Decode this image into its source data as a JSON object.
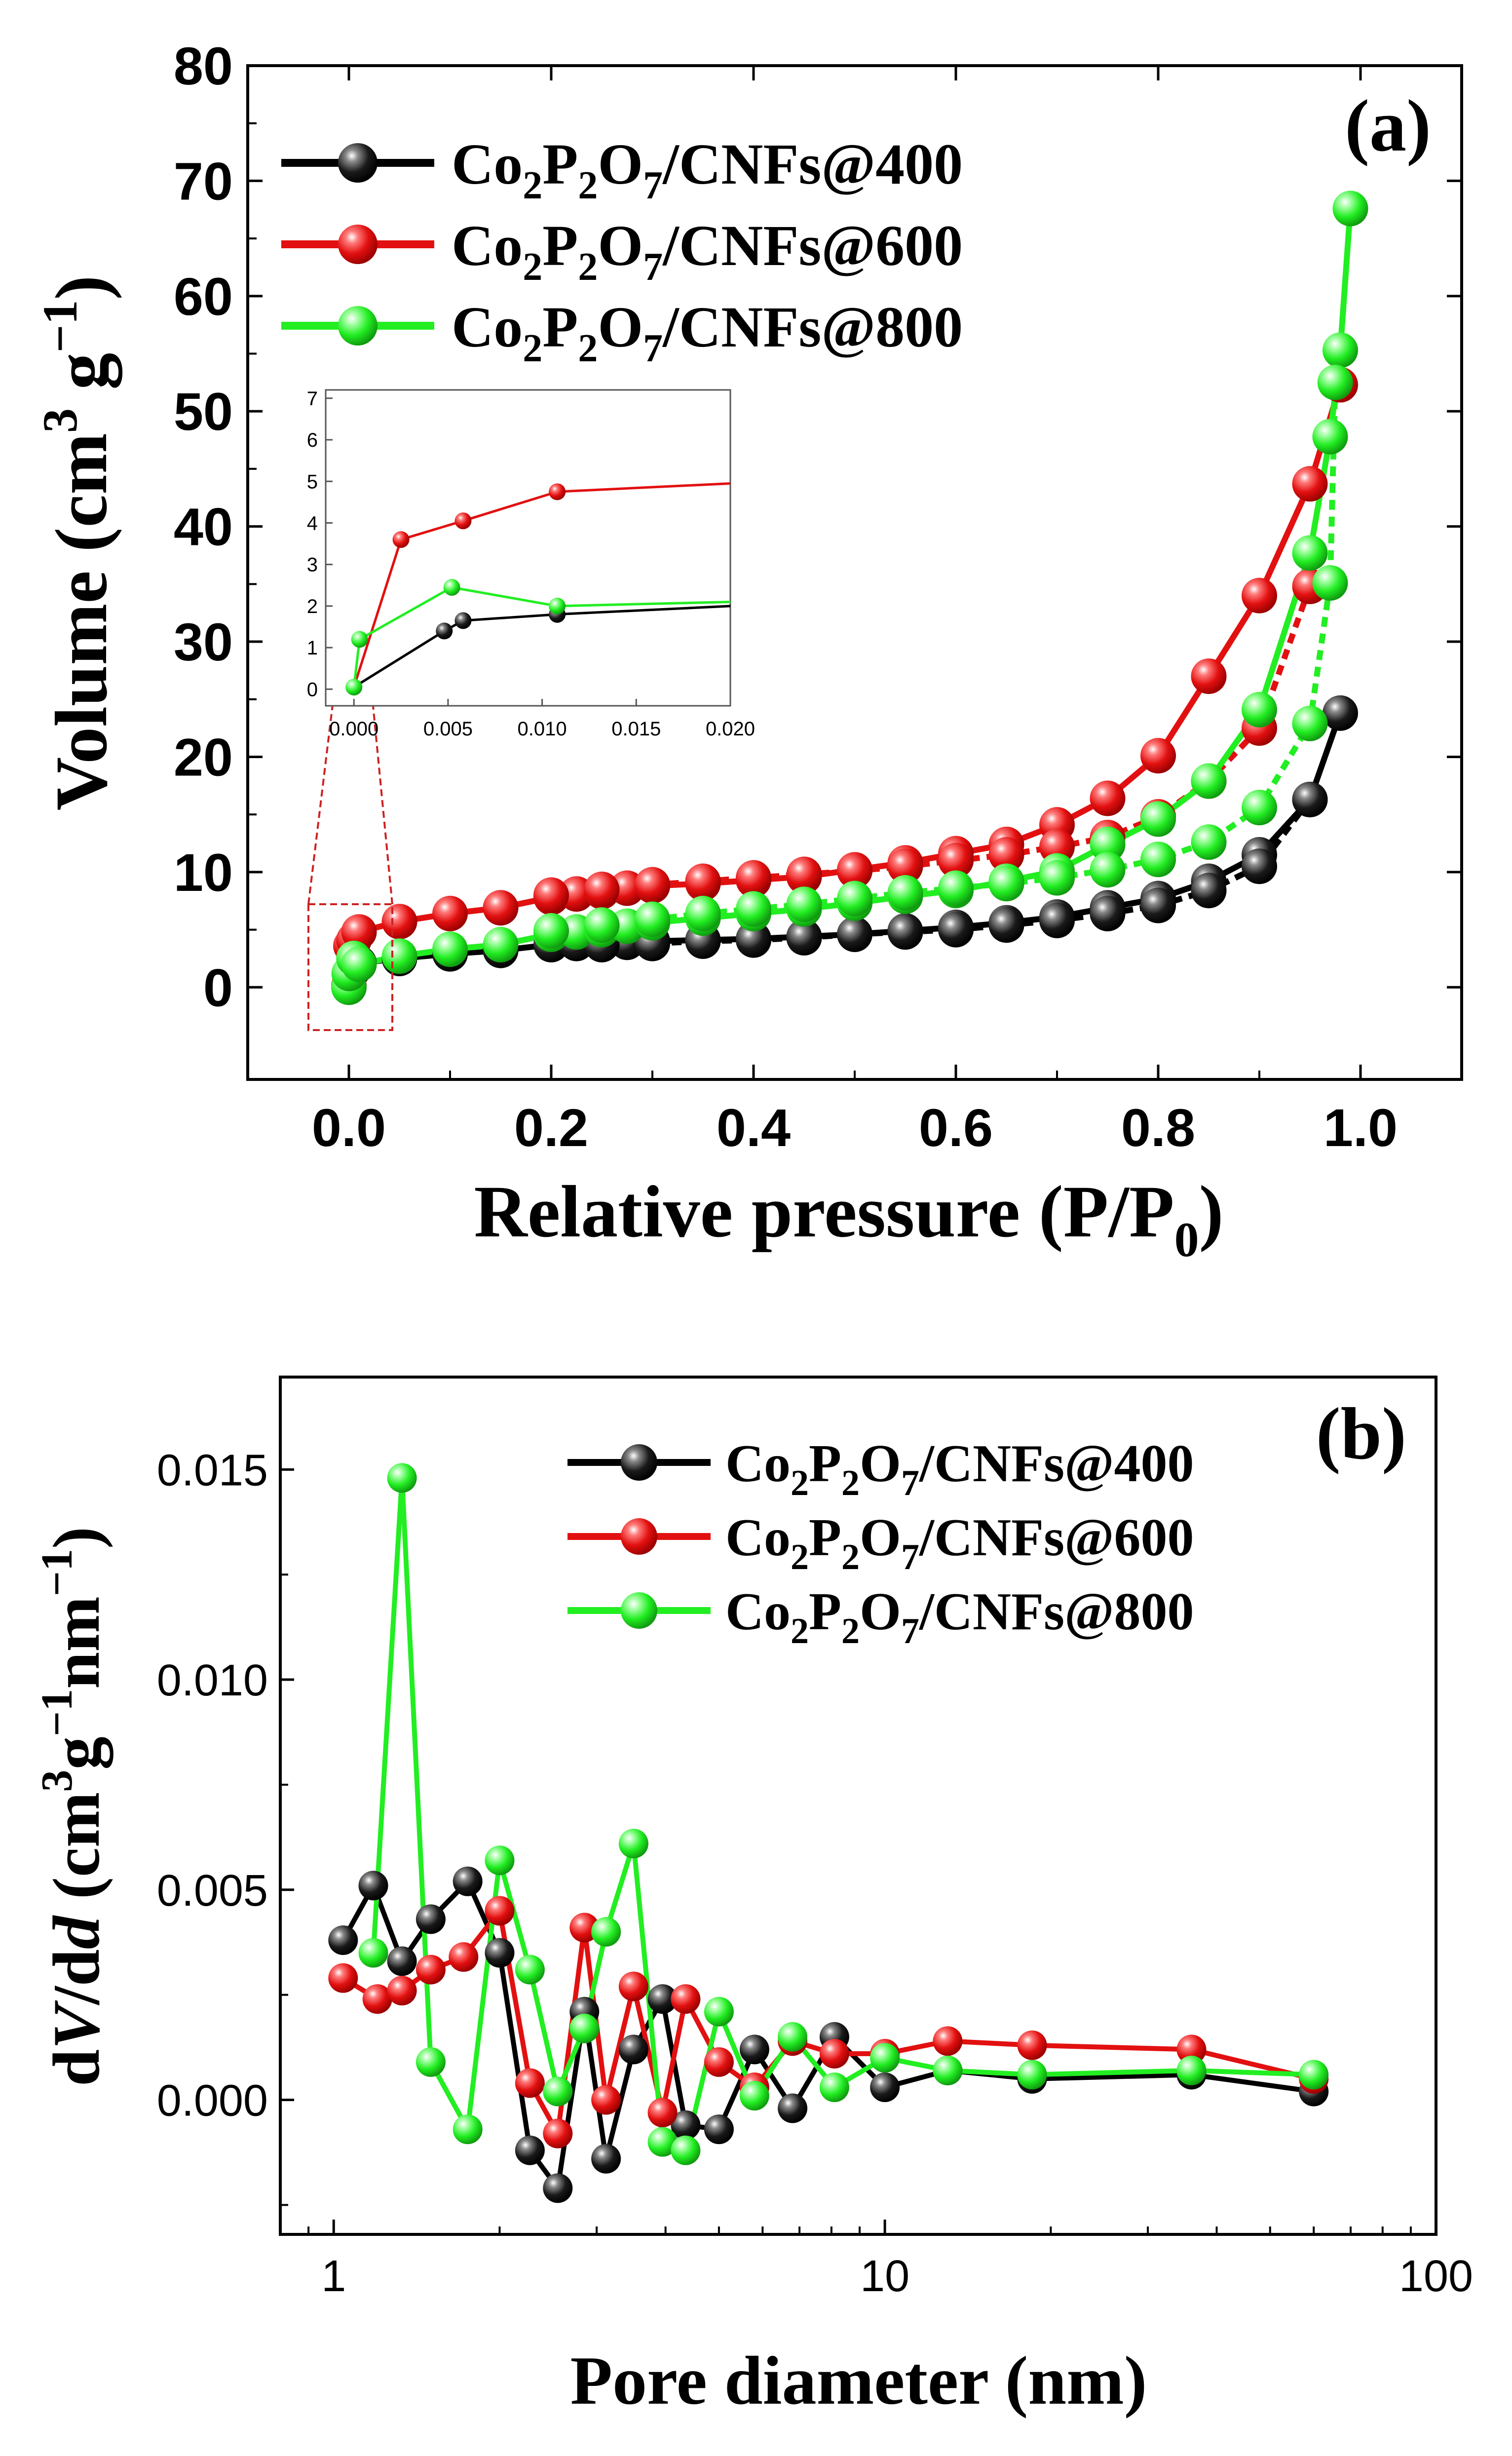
{
  "colors": {
    "Co2P2O7/CNFs@400": "#000000",
    "Co2P2O7/CNFs@600": "#e21010",
    "Co2P2O7/CNFs@800": "#22ee22",
    "highlight_box": "#cc2222"
  },
  "chart_data": [
    {
      "id": "a",
      "panel_label": "(a)",
      "type": "line",
      "xlabel": "Relative pressure (P/P",
      "xlabel_sub": "0",
      "xlabel_close": ")",
      "ylabel": "Volume (cm",
      "ylabel_sup3": "3",
      "ylabel_g": " g",
      "ylabel_sup": "−1",
      "ylabel_close": ")",
      "xlim": [
        -0.1,
        1.1
      ],
      "ylim": [
        -8,
        80
      ],
      "xticks": [
        "0.0",
        "0.2",
        "0.4",
        "0.6",
        "0.8",
        "1.0"
      ],
      "yticks": [
        "0",
        "10",
        "20",
        "30",
        "40",
        "50",
        "60",
        "70",
        "80"
      ],
      "legend_position": "top-left",
      "legend": [
        {
          "pre": "Co",
          "s1": "2",
          "mid": "P",
          "s2": "2",
          "mid2": "O",
          "s3": "7",
          "post": "/CNFs@400"
        },
        {
          "pre": "Co",
          "s1": "2",
          "mid": "P",
          "s2": "2",
          "mid2": "O",
          "s3": "7",
          "post": "/CNFs@600"
        },
        {
          "pre": "Co",
          "s1": "2",
          "mid": "P",
          "s2": "2",
          "mid2": "O",
          "s3": "7",
          "post": "/CNFs@800"
        }
      ],
      "series": [
        {
          "name": "Co2P2O7/CNFs@400",
          "adsorption": [
            [
              0.0,
              0.1
            ],
            [
              0.005,
              1.6
            ],
            [
              0.01,
              2.1
            ],
            [
              0.05,
              2.5
            ],
            [
              0.1,
              2.9
            ],
            [
              0.15,
              3.2
            ],
            [
              0.2,
              3.7
            ],
            [
              0.225,
              3.8
            ],
            [
              0.25,
              3.8
            ],
            [
              0.275,
              3.9
            ],
            [
              0.3,
              4.0
            ],
            [
              0.35,
              4.1
            ],
            [
              0.4,
              4.2
            ],
            [
              0.45,
              4.4
            ],
            [
              0.5,
              4.6
            ],
            [
              0.55,
              4.9
            ],
            [
              0.6,
              5.2
            ],
            [
              0.65,
              5.6
            ],
            [
              0.7,
              6.1
            ],
            [
              0.75,
              6.9
            ],
            [
              0.8,
              7.7
            ],
            [
              0.85,
              9.2
            ],
            [
              0.9,
              11.5
            ],
            [
              0.95,
              16.3
            ],
            [
              0.98,
              23.8
            ]
          ],
          "desorption": [
            [
              0.95,
              16.3
            ],
            [
              0.9,
              10.5
            ],
            [
              0.85,
              8.4
            ],
            [
              0.8,
              7.1
            ],
            [
              0.75,
              6.4
            ],
            [
              0.7,
              5.8
            ],
            [
              0.65,
              5.4
            ],
            [
              0.6,
              5.0
            ],
            [
              0.55,
              4.8
            ],
            [
              0.5,
              4.6
            ],
            [
              0.45,
              4.3
            ],
            [
              0.4,
              4.1
            ],
            [
              0.35,
              4.0
            ],
            [
              0.3,
              3.8
            ],
            [
              0.25,
              3.7
            ]
          ]
        },
        {
          "name": "Co2P2O7/CNFs@600",
          "adsorption": [
            [
              0.0,
              0.1
            ],
            [
              0.002,
              3.6
            ],
            [
              0.005,
              4.1
            ],
            [
              0.01,
              4.8
            ],
            [
              0.05,
              5.7
            ],
            [
              0.1,
              6.4
            ],
            [
              0.15,
              6.9
            ],
            [
              0.2,
              7.8
            ],
            [
              0.225,
              8.1
            ],
            [
              0.25,
              8.3
            ],
            [
              0.275,
              8.6
            ],
            [
              0.3,
              8.8
            ],
            [
              0.35,
              9.0
            ],
            [
              0.4,
              9.3
            ],
            [
              0.45,
              9.6
            ],
            [
              0.5,
              10.2
            ],
            [
              0.55,
              10.8
            ],
            [
              0.6,
              11.6
            ],
            [
              0.65,
              12.4
            ],
            [
              0.7,
              14.1
            ],
            [
              0.75,
              16.4
            ],
            [
              0.8,
              20.1
            ],
            [
              0.85,
              27.0
            ],
            [
              0.9,
              34.0
            ],
            [
              0.95,
              43.7
            ],
            [
              0.98,
              52.3
            ]
          ],
          "desorption": [
            [
              0.95,
              34.8
            ],
            [
              0.9,
              22.5
            ],
            [
              0.85,
              17.9
            ],
            [
              0.8,
              14.8
            ],
            [
              0.75,
              13.0
            ],
            [
              0.7,
              12.2
            ],
            [
              0.65,
              11.5
            ],
            [
              0.6,
              11.0
            ],
            [
              0.55,
              10.5
            ],
            [
              0.5,
              10.1
            ],
            [
              0.45,
              9.8
            ],
            [
              0.4,
              9.5
            ],
            [
              0.35,
              9.2
            ],
            [
              0.3,
              8.9
            ],
            [
              0.25,
              8.5
            ],
            [
              0.2,
              8.0
            ]
          ]
        },
        {
          "name": "Co2P2O7/CNFs@800",
          "adsorption": [
            [
              0.0,
              0.0
            ],
            [
              0.0003,
              1.2
            ],
            [
              0.005,
              2.5
            ],
            [
              0.01,
              2.0
            ],
            [
              0.05,
              2.7
            ],
            [
              0.1,
              3.3
            ],
            [
              0.15,
              3.7
            ],
            [
              0.2,
              4.6
            ],
            [
              0.225,
              4.8
            ],
            [
              0.25,
              5.0
            ],
            [
              0.275,
              5.3
            ],
            [
              0.3,
              5.6
            ],
            [
              0.35,
              6.0
            ],
            [
              0.4,
              6.4
            ],
            [
              0.45,
              6.8
            ],
            [
              0.5,
              7.3
            ],
            [
              0.55,
              7.9
            ],
            [
              0.6,
              8.4
            ],
            [
              0.65,
              9.2
            ],
            [
              0.7,
              10.1
            ],
            [
              0.75,
              12.4
            ],
            [
              0.8,
              14.6
            ],
            [
              0.85,
              17.9
            ],
            [
              0.9,
              24.1
            ],
            [
              0.95,
              37.7
            ],
            [
              0.97,
              47.8
            ],
            [
              0.98,
              55.3
            ],
            [
              0.99,
              67.6
            ]
          ],
          "desorption": [
            [
              0.975,
              52.5
            ],
            [
              0.97,
              35.1
            ],
            [
              0.95,
              22.9
            ],
            [
              0.9,
              15.6
            ],
            [
              0.85,
              12.6
            ],
            [
              0.8,
              11.1
            ],
            [
              0.75,
              10.2
            ],
            [
              0.7,
              9.5
            ],
            [
              0.65,
              9.0
            ],
            [
              0.6,
              8.6
            ],
            [
              0.55,
              8.2
            ],
            [
              0.5,
              7.7
            ],
            [
              0.45,
              7.2
            ],
            [
              0.4,
              6.8
            ],
            [
              0.35,
              6.4
            ],
            [
              0.3,
              5.9
            ],
            [
              0.25,
              5.4
            ],
            [
              0.2,
              4.9
            ]
          ]
        }
      ],
      "inset": {
        "type": "line",
        "xlim": [
          -0.0015,
          0.02
        ],
        "ylim": [
          -0.4,
          7.2
        ],
        "xticks": [
          "0.000",
          "0.005",
          "0.010",
          "0.015",
          "0.020"
        ],
        "yticks": [
          "0",
          "1",
          "2",
          "3",
          "4",
          "5",
          "6",
          "7"
        ],
        "series": [
          {
            "name": "Co2P2O7/CNFs@400",
            "points": [
              [
                0.0,
                0.05
              ],
              [
                0.0048,
                1.4
              ],
              [
                0.0058,
                1.65
              ],
              [
                0.0108,
                1.8
              ],
              [
                0.02,
                2.0
              ]
            ],
            "markers": [
              [
                0.0048,
                1.4
              ],
              [
                0.0058,
                1.65
              ],
              [
                0.0108,
                1.8
              ]
            ]
          },
          {
            "name": "Co2P2O7/CNFs@600",
            "points": [
              [
                0.0,
                0.05
              ],
              [
                0.0025,
                3.6
              ],
              [
                0.0058,
                4.05
              ],
              [
                0.0108,
                4.75
              ],
              [
                0.02,
                4.95
              ]
            ],
            "markers": [
              [
                0.0025,
                3.6
              ],
              [
                0.0058,
                4.05
              ],
              [
                0.0108,
                4.75
              ]
            ]
          },
          {
            "name": "Co2P2O7/CNFs@800",
            "points": [
              [
                0.0,
                0.05
              ],
              [
                0.0003,
                1.2
              ],
              [
                0.0052,
                2.45
              ],
              [
                0.0108,
                2.0
              ],
              [
                0.02,
                2.1
              ]
            ],
            "markers": [
              [
                0.0,
                0.05
              ],
              [
                0.0003,
                1.2
              ],
              [
                0.0052,
                2.45
              ],
              [
                0.0108,
                2.0
              ]
            ]
          }
        ]
      }
    },
    {
      "id": "b",
      "panel_label": "(b)",
      "type": "line",
      "xscale": "log",
      "xlabel": "Pore diameter (nm)",
      "ylabel_d1": "d",
      "ylabel_V": "V",
      "ylabel_d2": "/d",
      "ylabel_dd": "d",
      "ylabel_rest": " (cm",
      "ylabel_sup3": "3",
      "ylabel_g": "g",
      "ylabel_sup1": "−1",
      "ylabel_nm": "nm",
      "ylabel_sup2": "−1",
      "ylabel_close": ")",
      "xlim": [
        0.8,
        100
      ],
      "ylim": [
        -0.0032,
        0.0172
      ],
      "xticks": [
        "1",
        "10",
        "100"
      ],
      "yticks": [
        "0.000",
        "0.005",
        "0.010",
        "0.015"
      ],
      "legend_position": "top-right",
      "legend": [
        {
          "pre": "Co",
          "s1": "2",
          "mid": "P",
          "s2": "2",
          "mid2": "O",
          "s3": "7",
          "post": "/CNFs@400"
        },
        {
          "pre": "Co",
          "s1": "2",
          "mid": "P",
          "s2": "2",
          "mid2": "O",
          "s3": "7",
          "post": "/CNFs@600"
        },
        {
          "pre": "Co",
          "s1": "2",
          "mid": "P",
          "s2": "2",
          "mid2": "O",
          "s3": "7",
          "post": "/CNFs@800"
        }
      ],
      "series": [
        {
          "name": "Co2P2O7/CNFs@400",
          "points": [
            [
              1.04,
              0.0038
            ],
            [
              1.18,
              0.0051
            ],
            [
              1.33,
              0.0033
            ],
            [
              1.5,
              0.0043
            ],
            [
              1.75,
              0.0052
            ],
            [
              2.0,
              0.0035
            ],
            [
              2.27,
              -0.0012
            ],
            [
              2.55,
              -0.0021
            ],
            [
              2.85,
              0.0021
            ],
            [
              3.12,
              -0.0014
            ],
            [
              3.5,
              0.0012
            ],
            [
              3.95,
              0.0024
            ],
            [
              4.35,
              -0.0006
            ],
            [
              5.0,
              -0.0007
            ],
            [
              5.8,
              0.0012
            ],
            [
              6.8,
              -0.0002
            ],
            [
              8.1,
              0.0015
            ],
            [
              10.0,
              0.0003
            ],
            [
              13.0,
              0.0007
            ],
            [
              18.5,
              0.0005
            ],
            [
              36.0,
              0.0006
            ],
            [
              60.0,
              0.0002
            ]
          ]
        },
        {
          "name": "Co2P2O7/CNFs@600",
          "points": [
            [
              1.04,
              0.0029
            ],
            [
              1.2,
              0.0024
            ],
            [
              1.33,
              0.0026
            ],
            [
              1.5,
              0.0031
            ],
            [
              1.72,
              0.0034
            ],
            [
              2.0,
              0.0045
            ],
            [
              2.27,
              0.0004
            ],
            [
              2.55,
              -0.0008
            ],
            [
              2.85,
              0.0041
            ],
            [
              3.12,
              0.0
            ],
            [
              3.5,
              0.0027
            ],
            [
              3.95,
              -0.0003
            ],
            [
              4.35,
              0.0024
            ],
            [
              5.0,
              0.0009
            ],
            [
              5.8,
              0.0003
            ],
            [
              6.8,
              0.0014
            ],
            [
              8.1,
              0.0011
            ],
            [
              10.0,
              0.0011
            ],
            [
              13.0,
              0.0014
            ],
            [
              18.5,
              0.0013
            ],
            [
              36.0,
              0.0012
            ],
            [
              60.0,
              0.0005
            ]
          ]
        },
        {
          "name": "Co2P2O7/CNFs@800",
          "points": [
            [
              1.18,
              0.0035
            ],
            [
              1.33,
              0.0148
            ],
            [
              1.5,
              0.0009
            ],
            [
              1.75,
              -0.0007
            ],
            [
              2.0,
              0.0057
            ],
            [
              2.27,
              0.0031
            ],
            [
              2.55,
              0.0002
            ],
            [
              2.85,
              0.0017
            ],
            [
              3.12,
              0.004
            ],
            [
              3.5,
              0.0061
            ],
            [
              3.95,
              -0.001
            ],
            [
              4.35,
              -0.0012
            ],
            [
              5.0,
              0.0021
            ],
            [
              5.8,
              0.0001
            ],
            [
              6.8,
              0.0015
            ],
            [
              8.1,
              0.0003
            ],
            [
              10.0,
              0.001
            ],
            [
              13.0,
              0.0007
            ],
            [
              18.5,
              0.0006
            ],
            [
              36.0,
              0.0007
            ],
            [
              60.0,
              0.0006
            ]
          ]
        }
      ]
    }
  ]
}
